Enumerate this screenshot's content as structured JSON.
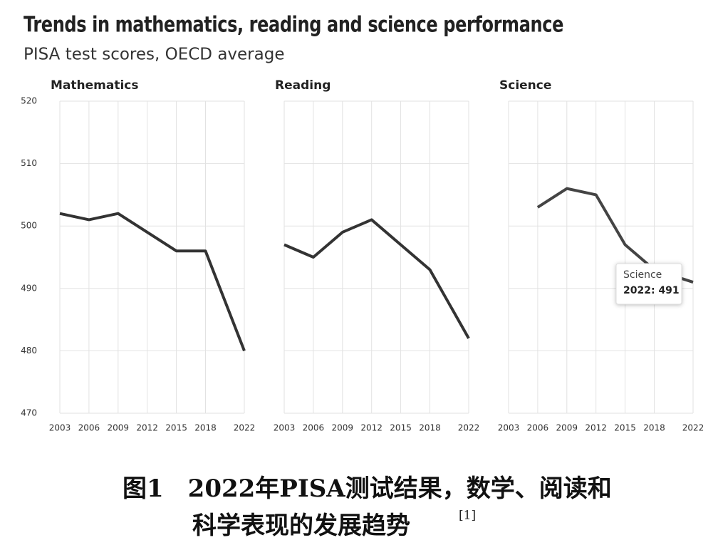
{
  "title": "Trends in mathematics, reading and science performance",
  "subtitle": "PISA test scores, OECD average",
  "chart_data": [
    {
      "type": "line",
      "title": "Mathematics",
      "x": [
        2003,
        2006,
        2009,
        2012,
        2015,
        2018,
        2022
      ],
      "values": [
        502,
        501,
        502,
        499,
        496,
        496,
        480
      ],
      "color": "#333333",
      "xlim": [
        2003,
        2022
      ],
      "xticks": [
        2003,
        2006,
        2009,
        2012,
        2015,
        2018,
        2022
      ],
      "ylim": [
        470,
        520
      ],
      "yticks": [
        470,
        480,
        490,
        500,
        510,
        520
      ],
      "grid": true
    },
    {
      "type": "line",
      "title": "Reading",
      "x": [
        2003,
        2006,
        2009,
        2012,
        2015,
        2018,
        2022
      ],
      "values": [
        497,
        495,
        499,
        501,
        497,
        493,
        482
      ],
      "color": "#333333",
      "xlim": [
        2003,
        2022
      ],
      "xticks": [
        2003,
        2006,
        2009,
        2012,
        2015,
        2018,
        2022
      ],
      "ylim": [
        470,
        520
      ],
      "yticks": [
        470,
        480,
        490,
        500,
        510,
        520
      ],
      "grid": true
    },
    {
      "type": "line",
      "title": "Science",
      "x": [
        2003,
        2006,
        2009,
        2012,
        2015,
        2018,
        2022
      ],
      "values": [
        null,
        503,
        506,
        505,
        497,
        493,
        491
      ],
      "color": "#444444",
      "xlim": [
        2003,
        2022
      ],
      "xticks": [
        2003,
        2006,
        2009,
        2012,
        2015,
        2018,
        2022
      ],
      "ylim": [
        470,
        520
      ],
      "yticks": [
        470,
        480,
        490,
        500,
        510,
        520
      ],
      "grid": true,
      "tooltip": "2022: 491"
    }
  ],
  "caption": {
    "line1": "图1　2022年PISA测试结果，数学、阅读和",
    "line2": "科学表现的发展趋势",
    "ref": "[1]"
  }
}
